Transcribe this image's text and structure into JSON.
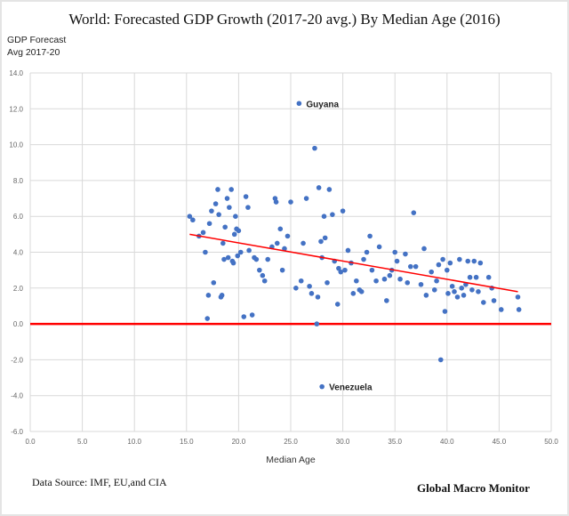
{
  "chart_data": {
    "type": "scatter",
    "title": "World: Forecasted GDP Growth (2017-20 avg.) By Median Age (2016)",
    "ylabel_lines": [
      "GDP Forecast",
      "Avg 2017-20"
    ],
    "xlabel": "Median Age",
    "xlim": [
      0,
      50
    ],
    "ylim": [
      -6,
      14
    ],
    "xticks": [
      "0.0",
      "5.0",
      "10.0",
      "15.0",
      "20.0",
      "25.0",
      "30.0",
      "35.0",
      "40.0",
      "45.0",
      "50.0"
    ],
    "yticks": [
      "14.0",
      "12.0",
      "10.0",
      "8.0",
      "6.0",
      "4.0",
      "2.0",
      "0.0",
      "-2.0",
      "-4.0",
      "-6.0"
    ],
    "grid": true,
    "point_color": "#4472c4",
    "trend_color": "#ff0000",
    "zero_line_color": "#ff0000",
    "trendline": [
      [
        15.3,
        5.0
      ],
      [
        46.8,
        1.8
      ]
    ],
    "annotations": [
      {
        "label": "Guyana",
        "x": 25.8,
        "y": 12.3
      },
      {
        "label": "Venezuela",
        "x": 28.0,
        "y": -3.5
      }
    ],
    "points": [
      [
        15.3,
        6.0
      ],
      [
        15.6,
        5.8
      ],
      [
        16.2,
        4.9
      ],
      [
        16.6,
        5.1
      ],
      [
        16.8,
        4.0
      ],
      [
        17.0,
        0.3
      ],
      [
        17.1,
        1.6
      ],
      [
        17.2,
        5.6
      ],
      [
        17.4,
        6.3
      ],
      [
        17.6,
        2.3
      ],
      [
        17.8,
        6.7
      ],
      [
        18.0,
        7.5
      ],
      [
        18.1,
        6.1
      ],
      [
        18.3,
        1.5
      ],
      [
        18.4,
        1.6
      ],
      [
        18.5,
        4.5
      ],
      [
        18.6,
        3.6
      ],
      [
        18.7,
        5.4
      ],
      [
        18.9,
        7.0
      ],
      [
        19.0,
        3.7
      ],
      [
        19.1,
        6.5
      ],
      [
        19.3,
        7.5
      ],
      [
        19.4,
        3.5
      ],
      [
        19.5,
        3.4
      ],
      [
        19.6,
        5.0
      ],
      [
        19.7,
        6.0
      ],
      [
        19.8,
        5.3
      ],
      [
        19.9,
        3.8
      ],
      [
        20.0,
        5.2
      ],
      [
        20.2,
        4.0
      ],
      [
        20.5,
        0.4
      ],
      [
        20.7,
        7.1
      ],
      [
        20.9,
        6.5
      ],
      [
        21.0,
        4.1
      ],
      [
        21.3,
        0.5
      ],
      [
        21.5,
        3.7
      ],
      [
        21.7,
        3.6
      ],
      [
        22.0,
        3.0
      ],
      [
        22.3,
        2.7
      ],
      [
        22.5,
        2.4
      ],
      [
        22.8,
        3.6
      ],
      [
        23.2,
        4.3
      ],
      [
        23.5,
        7.0
      ],
      [
        23.6,
        6.8
      ],
      [
        23.7,
        4.5
      ],
      [
        24.0,
        5.3
      ],
      [
        24.2,
        3.0
      ],
      [
        24.4,
        4.2
      ],
      [
        24.7,
        4.9
      ],
      [
        25.0,
        6.8
      ],
      [
        25.5,
        2.0
      ],
      [
        25.8,
        12.3
      ],
      [
        26.0,
        2.4
      ],
      [
        26.2,
        4.5
      ],
      [
        26.5,
        7.0
      ],
      [
        26.8,
        2.1
      ],
      [
        27.0,
        1.7
      ],
      [
        27.3,
        9.8
      ],
      [
        27.5,
        0.0
      ],
      [
        27.6,
        1.5
      ],
      [
        27.7,
        7.6
      ],
      [
        27.9,
        4.6
      ],
      [
        28.0,
        3.7
      ],
      [
        28.0,
        -3.5
      ],
      [
        28.2,
        6.0
      ],
      [
        28.3,
        4.8
      ],
      [
        28.5,
        2.3
      ],
      [
        28.7,
        7.5
      ],
      [
        29.0,
        6.1
      ],
      [
        29.2,
        3.5
      ],
      [
        29.5,
        1.1
      ],
      [
        29.6,
        3.1
      ],
      [
        29.8,
        2.9
      ],
      [
        30.0,
        6.3
      ],
      [
        30.2,
        3.0
      ],
      [
        30.5,
        4.1
      ],
      [
        30.8,
        3.4
      ],
      [
        31.0,
        1.7
      ],
      [
        31.3,
        2.4
      ],
      [
        31.6,
        1.9
      ],
      [
        31.8,
        1.8
      ],
      [
        32.0,
        3.6
      ],
      [
        32.3,
        4.0
      ],
      [
        32.6,
        4.9
      ],
      [
        32.8,
        3.0
      ],
      [
        33.2,
        2.4
      ],
      [
        33.5,
        4.3
      ],
      [
        34.0,
        2.5
      ],
      [
        34.2,
        1.3
      ],
      [
        34.5,
        2.7
      ],
      [
        34.7,
        3.0
      ],
      [
        35.0,
        4.0
      ],
      [
        35.2,
        3.5
      ],
      [
        35.5,
        2.5
      ],
      [
        36.0,
        3.9
      ],
      [
        36.2,
        2.3
      ],
      [
        36.5,
        3.2
      ],
      [
        36.8,
        6.2
      ],
      [
        37.0,
        3.2
      ],
      [
        37.5,
        2.2
      ],
      [
        37.8,
        4.2
      ],
      [
        38.0,
        1.6
      ],
      [
        38.5,
        2.9
      ],
      [
        38.8,
        1.9
      ],
      [
        39.0,
        2.4
      ],
      [
        39.2,
        3.3
      ],
      [
        39.4,
        -2.0
      ],
      [
        39.6,
        3.6
      ],
      [
        39.8,
        0.7
      ],
      [
        40.0,
        3.0
      ],
      [
        40.1,
        1.7
      ],
      [
        40.3,
        3.4
      ],
      [
        40.5,
        2.1
      ],
      [
        40.7,
        1.8
      ],
      [
        41.0,
        1.5
      ],
      [
        41.2,
        3.6
      ],
      [
        41.4,
        2.0
      ],
      [
        41.6,
        1.6
      ],
      [
        41.8,
        2.2
      ],
      [
        42.0,
        3.5
      ],
      [
        42.2,
        2.6
      ],
      [
        42.4,
        1.9
      ],
      [
        42.6,
        3.5
      ],
      [
        42.8,
        2.6
      ],
      [
        43.0,
        1.8
      ],
      [
        43.2,
        3.4
      ],
      [
        43.5,
        1.2
      ],
      [
        44.0,
        2.6
      ],
      [
        44.3,
        2.0
      ],
      [
        44.5,
        1.3
      ],
      [
        45.2,
        0.8
      ],
      [
        46.8,
        1.5
      ],
      [
        46.9,
        0.8
      ]
    ]
  },
  "footer": {
    "source": "Data Source:  IMF, EU,and CIA",
    "brand": "Global Macro Monitor"
  }
}
